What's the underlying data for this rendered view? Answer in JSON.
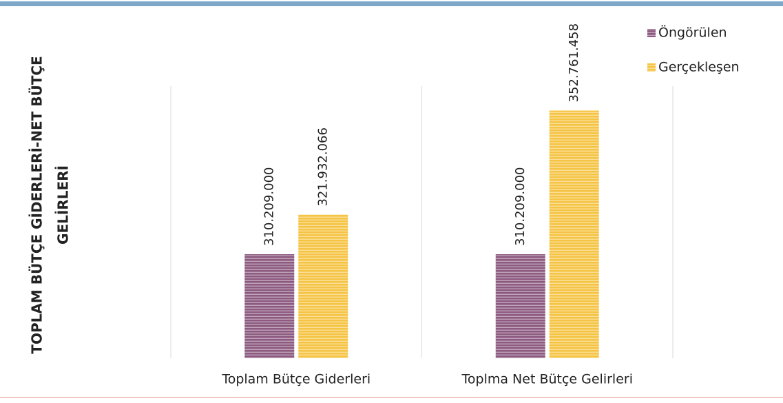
{
  "chart_data": {
    "type": "bar",
    "y_label_lines": [
      "TOPLAM BÜTÇE GİDERLERİ-NET BÜTÇE",
      "GELİRLERİ"
    ],
    "categories": [
      "Toplam Bütçe Giderleri",
      "Toplma Net Bütçe Gelirleri"
    ],
    "series": [
      {
        "name": "Öngörülen",
        "color": "#8c5a80",
        "values": [
          310209000,
          310209000
        ],
        "value_labels": [
          "310.209.000",
          "310.209.000"
        ]
      },
      {
        "name": "Gerçekleşen",
        "color": "#f5c445",
        "values": [
          321932066,
          352761458
        ],
        "value_labels": [
          "321.932.066",
          "352.761.458"
        ]
      }
    ],
    "ylim": [
      279400000,
      360000000
    ],
    "legend": "top-right"
  }
}
